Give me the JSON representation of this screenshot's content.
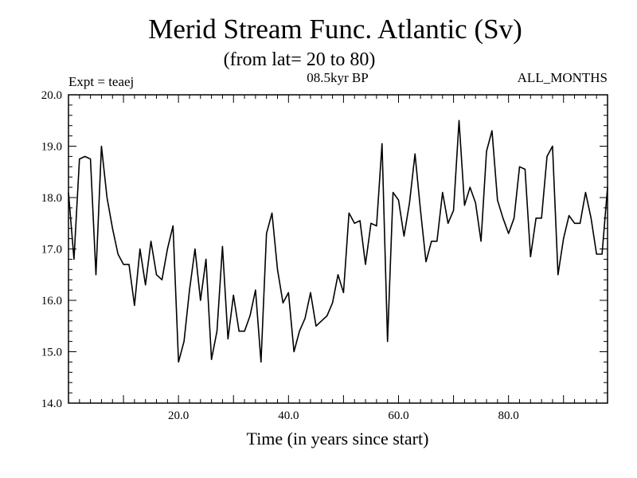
{
  "chart_data": {
    "type": "line",
    "title": "Merid Stream Func. Atlantic (Sv)",
    "subtitle": "(from lat= 20 to 80)",
    "annotation_left": "Expt = teaej",
    "annotation_center": "08.5kyr BP",
    "annotation_right": "ALL_MONTHS",
    "xlabel": "Time (in years since start)",
    "ylabel": "",
    "xlim": [
      0,
      98
    ],
    "ylim": [
      14.0,
      20.0
    ],
    "xticks": [
      20,
      40,
      60,
      80
    ],
    "xtick_labels": [
      "20.0",
      "40.0",
      "60.0",
      "80.0"
    ],
    "yticks": [
      14,
      15,
      16,
      17,
      18,
      19,
      20
    ],
    "ytick_labels": [
      "14.0",
      "15.0",
      "16.0",
      "17.0",
      "18.0",
      "19.0",
      "20.0"
    ],
    "grid": false,
    "series": [
      {
        "name": "teaej",
        "x": [
          0,
          1,
          2,
          3,
          4,
          5,
          6,
          7,
          8,
          9,
          10,
          11,
          12,
          13,
          14,
          15,
          16,
          17,
          18,
          19,
          20,
          21,
          22,
          23,
          24,
          25,
          26,
          27,
          28,
          29,
          30,
          31,
          32,
          33,
          34,
          35,
          36,
          37,
          38,
          39,
          40,
          41,
          42,
          43,
          44,
          45,
          46,
          47,
          48,
          49,
          50,
          51,
          52,
          53,
          54,
          55,
          56,
          57,
          58,
          59,
          60,
          61,
          62,
          63,
          64,
          65,
          66,
          67,
          68,
          69,
          70,
          71,
          72,
          73,
          74,
          75,
          76,
          77,
          78,
          79,
          80,
          81,
          82,
          83,
          84,
          85,
          86,
          87,
          88,
          89,
          90,
          91,
          92,
          93,
          94,
          95,
          96,
          97,
          98
        ],
        "values": [
          18.1,
          16.8,
          18.75,
          18.8,
          18.75,
          16.5,
          19.0,
          18.0,
          17.4,
          16.9,
          16.7,
          16.7,
          15.9,
          17.0,
          16.3,
          17.15,
          16.5,
          16.4,
          17.0,
          17.45,
          14.8,
          15.2,
          16.2,
          17.0,
          16.0,
          16.8,
          14.85,
          15.4,
          17.05,
          15.25,
          16.1,
          15.4,
          15.4,
          15.7,
          16.2,
          14.8,
          17.3,
          17.7,
          16.6,
          15.95,
          16.15,
          15.0,
          15.4,
          15.65,
          16.15,
          15.5,
          15.6,
          15.7,
          15.95,
          16.5,
          16.15,
          17.7,
          17.5,
          17.55,
          16.7,
          17.5,
          17.45,
          19.05,
          15.2,
          18.1,
          17.95,
          17.25,
          17.9,
          18.85,
          17.75,
          16.75,
          17.15,
          17.15,
          18.1,
          17.5,
          17.75,
          19.5,
          17.85,
          18.2,
          17.9,
          17.15,
          18.9,
          19.3,
          17.95,
          17.6,
          17.3,
          17.6,
          18.6,
          18.55,
          16.85,
          17.6,
          17.6,
          18.8,
          19.0,
          16.5,
          17.2,
          17.65,
          17.5,
          17.5,
          18.1,
          17.6,
          16.9,
          16.9,
          18.2
        ]
      }
    ]
  }
}
